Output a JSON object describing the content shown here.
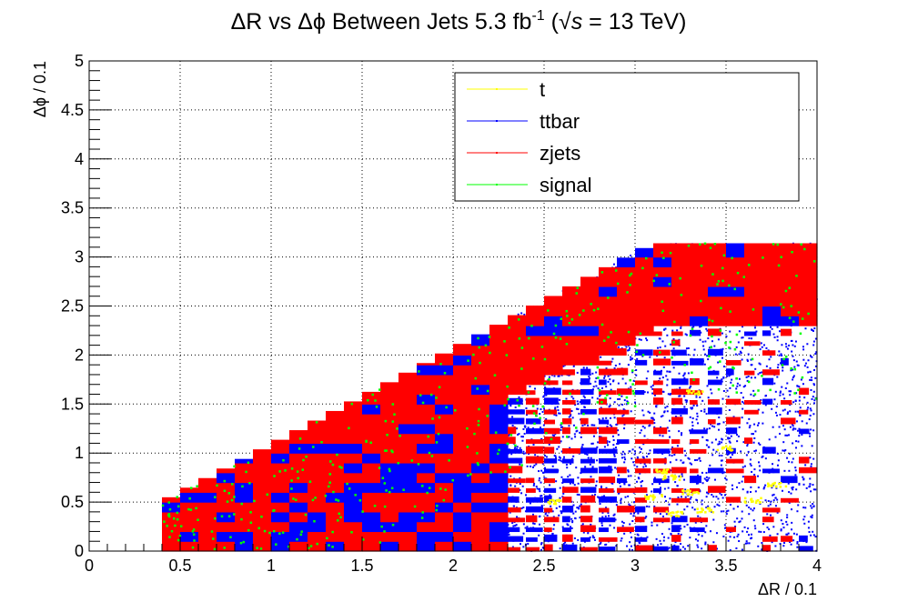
{
  "chart_data": {
    "type": "scatter",
    "title": "ΔR vs Δϕ Between Jets 5.3 fb",
    "title_superscript": "-1",
    "title_energy_open": " (",
    "title_sqrt": "√",
    "title_s": "s",
    "title_energy_close": " = 13 TeV)",
    "xlabel": "ΔR / 0.1",
    "ylabel": "Δϕ / 0.1",
    "xlim": [
      0,
      4
    ],
    "ylim": [
      0,
      5
    ],
    "grid": true,
    "legend_position": "top-right",
    "x_ticks": [
      {
        "value": 0,
        "label": "0"
      },
      {
        "value": 0.5,
        "label": "0.5"
      },
      {
        "value": 1,
        "label": "1"
      },
      {
        "value": 1.5,
        "label": "1.5"
      },
      {
        "value": 2,
        "label": "2"
      },
      {
        "value": 2.5,
        "label": "2.5"
      },
      {
        "value": 3,
        "label": "3"
      },
      {
        "value": 3.5,
        "label": "3.5"
      },
      {
        "value": 4,
        "label": "4"
      }
    ],
    "y_ticks": [
      {
        "value": 0,
        "label": "0"
      },
      {
        "value": 0.5,
        "label": "0.5"
      },
      {
        "value": 1,
        "label": "1"
      },
      {
        "value": 1.5,
        "label": "1.5"
      },
      {
        "value": 2,
        "label": "2"
      },
      {
        "value": 2.5,
        "label": "2.5"
      },
      {
        "value": 3,
        "label": "3"
      },
      {
        "value": 3.5,
        "label": "3.5"
      },
      {
        "value": 4,
        "label": "4"
      },
      {
        "value": 4.5,
        "label": "4.5"
      },
      {
        "value": 5,
        "label": "5"
      }
    ],
    "series": [
      {
        "name": "t",
        "color": "#ffff00"
      },
      {
        "name": "ttbar",
        "color": "#0000ff"
      },
      {
        "name": "zjets",
        "color": "#ff0000"
      },
      {
        "name": "signal",
        "color": "#00ff00"
      }
    ],
    "region": {
      "min_dr": 0.4,
      "diagonal_from": [
        0.4,
        0.5
      ],
      "diagonal_to": [
        3.1,
        3.14
      ],
      "max_dphi": 3.14
    }
  }
}
